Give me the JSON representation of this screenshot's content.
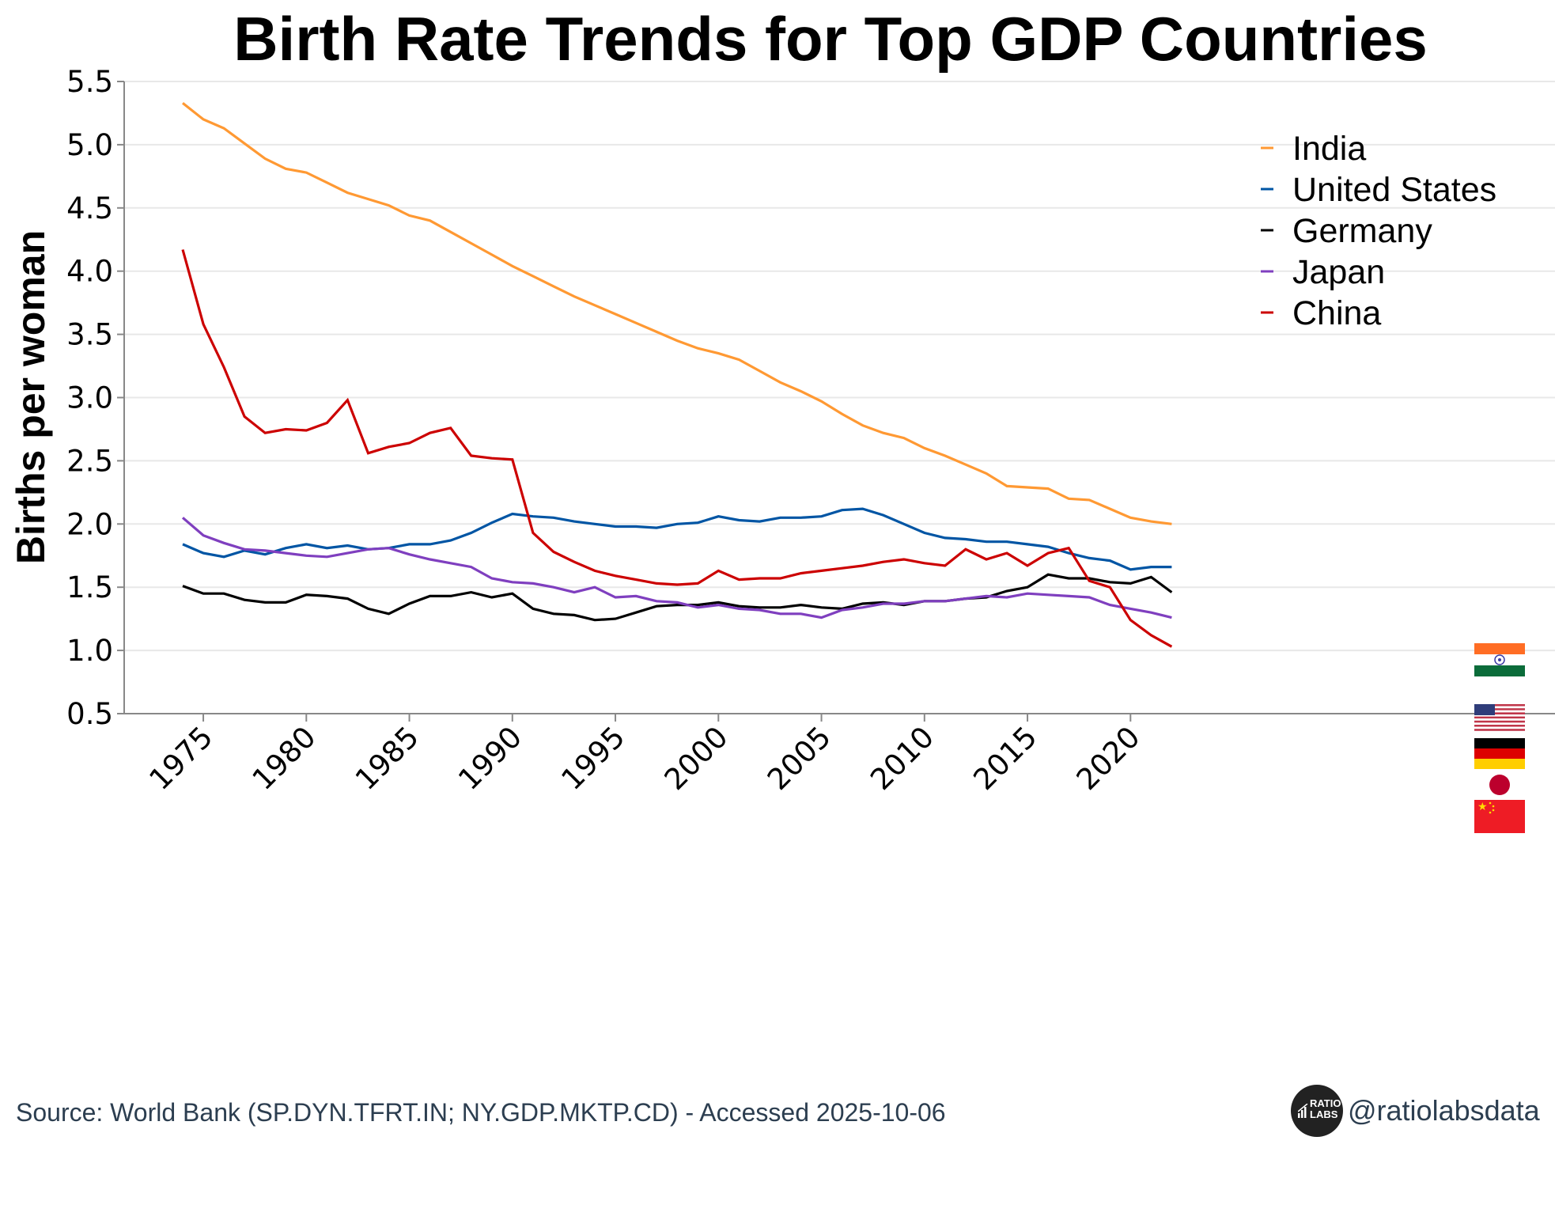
{
  "chart_data": {
    "type": "line",
    "title": "Birth Rate Trends for Top GDP Countries",
    "xlabel": "",
    "ylabel": "Births per woman",
    "xlim": [
      1970,
      2024
    ],
    "ylim": [
      0.5,
      5.5
    ],
    "yticks": [
      "0.5",
      "1.0",
      "1.5",
      "2.0",
      "2.5",
      "3.0",
      "3.5",
      "4.0",
      "4.5",
      "5.0",
      "5.5"
    ],
    "xticks": [
      "1975",
      "1980",
      "1985",
      "1990",
      "1995",
      "2000",
      "2005",
      "2010",
      "2015",
      "2020"
    ],
    "grid": "horizontal",
    "legend_position": "top-right",
    "x": [
      1974,
      1975,
      1976,
      1977,
      1978,
      1979,
      1980,
      1981,
      1982,
      1983,
      1984,
      1985,
      1986,
      1987,
      1988,
      1989,
      1990,
      1991,
      1992,
      1993,
      1994,
      1995,
      1996,
      1997,
      1998,
      1999,
      2000,
      2001,
      2002,
      2003,
      2004,
      2005,
      2006,
      2007,
      2008,
      2009,
      2010,
      2011,
      2012,
      2013,
      2014,
      2015,
      2016,
      2017,
      2018,
      2019,
      2020,
      2021,
      2022
    ],
    "series": [
      {
        "name": "India",
        "color": "#ff9933",
        "flag": "india-flag",
        "values": [
          5.33,
          5.2,
          5.13,
          5.01,
          4.89,
          4.81,
          4.78,
          4.7,
          4.62,
          4.57,
          4.52,
          4.44,
          4.4,
          4.31,
          4.22,
          4.13,
          4.04,
          3.96,
          3.88,
          3.8,
          3.73,
          3.66,
          3.59,
          3.52,
          3.45,
          3.39,
          3.35,
          3.3,
          3.21,
          3.12,
          3.05,
          2.97,
          2.87,
          2.78,
          2.72,
          2.68,
          2.6,
          2.54,
          2.47,
          2.4,
          2.3,
          2.29,
          2.28,
          2.2,
          2.19,
          2.12,
          2.05,
          2.02,
          2.0
        ]
      },
      {
        "name": "United States",
        "color": "#0055a4",
        "flag": "us-flag",
        "values": [
          1.84,
          1.77,
          1.74,
          1.79,
          1.76,
          1.81,
          1.84,
          1.81,
          1.83,
          1.8,
          1.81,
          1.84,
          1.84,
          1.87,
          1.93,
          2.01,
          2.08,
          2.06,
          2.05,
          2.02,
          2.0,
          1.98,
          1.98,
          1.97,
          2.0,
          2.01,
          2.06,
          2.03,
          2.02,
          2.05,
          2.05,
          2.06,
          2.11,
          2.12,
          2.07,
          2.0,
          1.93,
          1.89,
          1.88,
          1.86,
          1.86,
          1.84,
          1.82,
          1.77,
          1.73,
          1.71,
          1.64,
          1.66,
          1.66
        ]
      },
      {
        "name": "Germany",
        "color": "#000000",
        "flag": "germany-flag",
        "values": [
          1.51,
          1.45,
          1.45,
          1.4,
          1.38,
          1.38,
          1.44,
          1.43,
          1.41,
          1.33,
          1.29,
          1.37,
          1.43,
          1.43,
          1.46,
          1.42,
          1.45,
          1.33,
          1.29,
          1.28,
          1.24,
          1.25,
          1.3,
          1.35,
          1.36,
          1.36,
          1.38,
          1.35,
          1.34,
          1.34,
          1.36,
          1.34,
          1.33,
          1.37,
          1.38,
          1.36,
          1.39,
          1.39,
          1.41,
          1.42,
          1.47,
          1.5,
          1.6,
          1.57,
          1.57,
          1.54,
          1.53,
          1.58,
          1.46
        ]
      },
      {
        "name": "Japan",
        "color": "#7f3fbf",
        "flag": "japan-flag",
        "values": [
          2.05,
          1.91,
          1.85,
          1.8,
          1.79,
          1.77,
          1.75,
          1.74,
          1.77,
          1.8,
          1.81,
          1.76,
          1.72,
          1.69,
          1.66,
          1.57,
          1.54,
          1.53,
          1.5,
          1.46,
          1.5,
          1.42,
          1.43,
          1.39,
          1.38,
          1.34,
          1.36,
          1.33,
          1.32,
          1.29,
          1.29,
          1.26,
          1.32,
          1.34,
          1.37,
          1.37,
          1.39,
          1.39,
          1.41,
          1.43,
          1.42,
          1.45,
          1.44,
          1.43,
          1.42,
          1.36,
          1.33,
          1.3,
          1.26
        ]
      },
      {
        "name": "China",
        "color": "#cc0000",
        "flag": "china-flag",
        "values": [
          4.17,
          3.58,
          3.24,
          2.85,
          2.72,
          2.75,
          2.74,
          2.8,
          2.98,
          2.56,
          2.61,
          2.64,
          2.72,
          2.76,
          2.54,
          2.52,
          2.51,
          1.93,
          1.78,
          1.7,
          1.63,
          1.59,
          1.56,
          1.53,
          1.52,
          1.53,
          1.63,
          1.56,
          1.57,
          1.57,
          1.61,
          1.63,
          1.65,
          1.67,
          1.7,
          1.72,
          1.69,
          1.67,
          1.8,
          1.72,
          1.77,
          1.67,
          1.77,
          1.81,
          1.55,
          1.5,
          1.24,
          1.12,
          1.03
        ]
      }
    ]
  },
  "footer": {
    "source": "Source: World Bank (SP.DYN.TFRT.IN; NY.GDP.MKTP.CD) - Accessed 2025-10-06",
    "brand_logo_line1": "RATIO",
    "brand_logo_line2": "LABS",
    "handle": "@ratiolabsdata"
  }
}
